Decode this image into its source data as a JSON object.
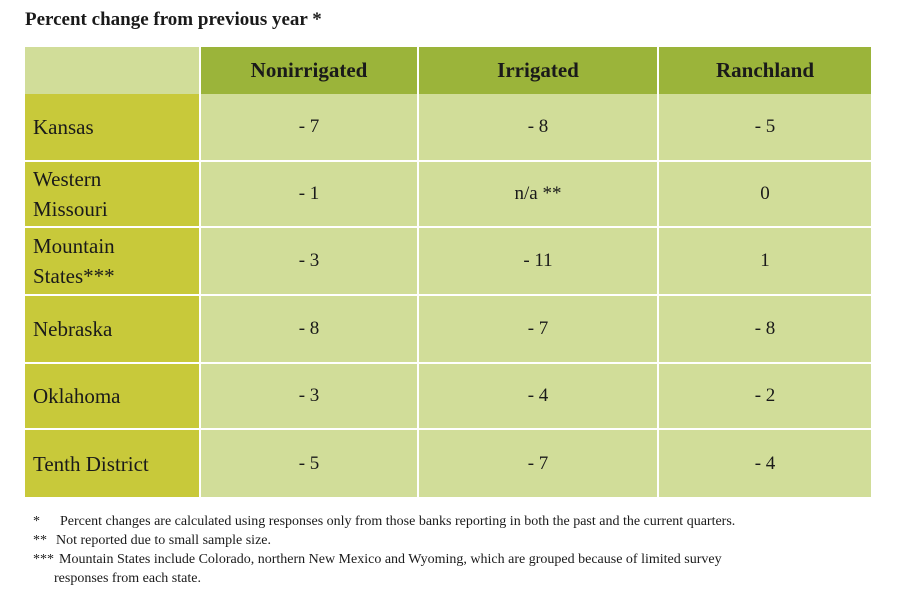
{
  "title": "Percent change from previous year *",
  "chart_data": {
    "type": "table",
    "title": "Percent change from previous year *",
    "columns": [
      "Nonirrigated",
      "Irrigated",
      "Ranchland"
    ],
    "rows": [
      {
        "label": "Kansas",
        "values": [
          "- 7",
          "- 8",
          "- 5"
        ]
      },
      {
        "label": "Western Missouri",
        "values": [
          "- 1",
          "n/a **",
          "0"
        ]
      },
      {
        "label": "Mountain States***",
        "values": [
          "- 3",
          "- 11",
          "1"
        ]
      },
      {
        "label": "Nebraska",
        "values": [
          "- 8",
          "- 7",
          "- 8"
        ]
      },
      {
        "label": "Oklahoma",
        "values": [
          "- 3",
          "- 4",
          "- 2"
        ]
      },
      {
        "label": "Tenth District",
        "values": [
          "- 5",
          "- 7",
          "- 4"
        ]
      }
    ]
  },
  "notes": [
    {
      "mark": "*",
      "text": "Percent changes are calculated using responses only from those banks reporting in both the past and the current quarters."
    },
    {
      "mark": "**",
      "text": "Not reported due to small sample size."
    },
    {
      "mark": "***",
      "text": "Mountain States include Colorado, northern New Mexico and Wyoming, which are grouped because of limited survey",
      "continuation": "responses from each state."
    }
  ]
}
